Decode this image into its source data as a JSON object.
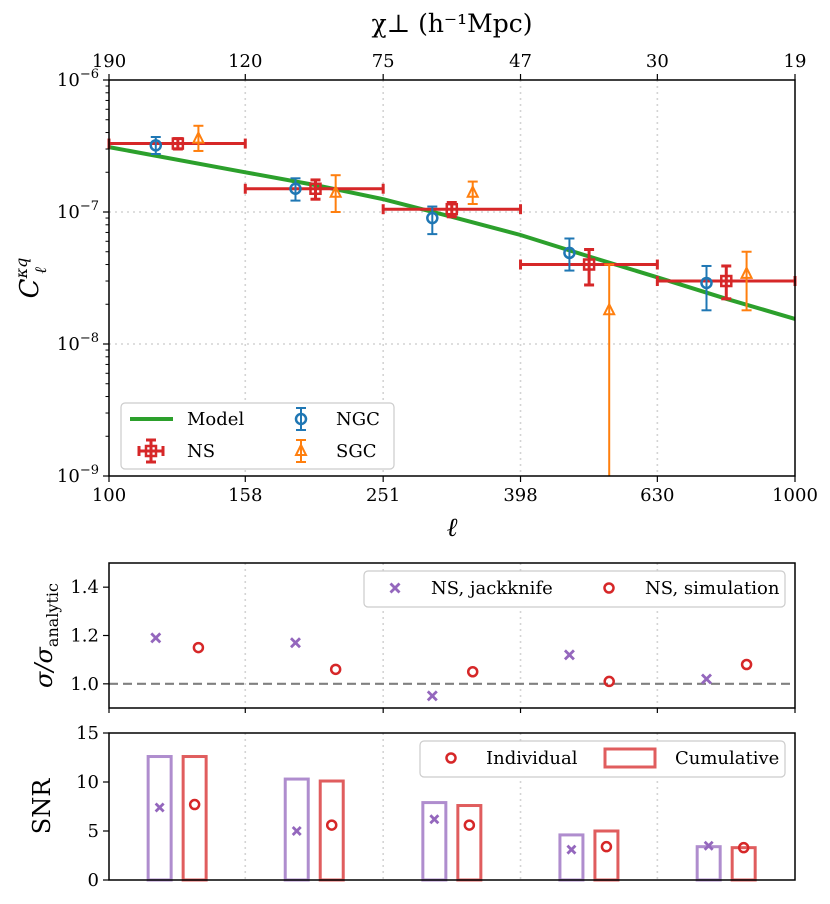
{
  "chart_data": [
    {
      "type": "scatter",
      "panel": "main",
      "title": "",
      "xlabel": "ℓ",
      "ylabel": "C_ℓ^κq",
      "xscale": "log",
      "yscale": "log",
      "xlim": [
        100,
        1000
      ],
      "ylim": [
        1e-09,
        1e-06
      ],
      "xticks": [
        100,
        158,
        251,
        398,
        630,
        1000
      ],
      "xtick_labels": [
        "100",
        "158",
        "251",
        "398",
        "630",
        "1000"
      ],
      "ytick_labels": [
        {
          "base": "10",
          "exp": "−9",
          "value": 1e-09
        },
        {
          "base": "10",
          "exp": "−8",
          "value": 1e-08
        },
        {
          "base": "10",
          "exp": "−7",
          "value": 1e-07
        },
        {
          "base": "10",
          "exp": "−6",
          "value": 1e-06
        }
      ],
      "top_axis": {
        "label": "χ⊥ (h⁻¹Mpc)",
        "tick_labels": [
          "190",
          "120",
          "75",
          "47",
          "30",
          "19"
        ]
      },
      "grid": true,
      "legend_position": "lower-left",
      "legend": [
        {
          "label": "Model",
          "color": "#2ca02c",
          "marker": "line"
        },
        {
          "label": "NGC",
          "color": "#1f77b4",
          "marker": "circle"
        },
        {
          "label": "NS",
          "color": "#d62728",
          "marker": "square"
        },
        {
          "label": "SGC",
          "color": "#ff7f0e",
          "marker": "triangle"
        }
      ],
      "model": {
        "name": "Model",
        "color": "#2ca02c",
        "x": [
          100,
          158,
          200,
          251,
          316,
          398,
          501,
          630,
          794,
          1000
        ],
        "y": [
          3.1e-07,
          2e-07,
          1.6e-07,
          1.25e-07,
          9.2e-08,
          6.7e-08,
          4.6e-08,
          3.2e-08,
          2.2e-08,
          1.55e-08
        ]
      },
      "series": [
        {
          "name": "NS",
          "color": "#d62728",
          "marker": "square",
          "points": [
            {
              "x": 126,
              "y": 3.3e-07,
              "ylo": 3e-07,
              "yhi": 3.6e-07,
              "xlo": 100,
              "xhi": 158
            },
            {
              "x": 200,
              "y": 1.5e-07,
              "ylo": 1.25e-07,
              "yhi": 1.75e-07,
              "xlo": 158,
              "xhi": 251
            },
            {
              "x": 316,
              "y": 1.05e-07,
              "ylo": 9.2e-08,
              "yhi": 1.18e-07,
              "xlo": 251,
              "xhi": 398
            },
            {
              "x": 501,
              "y": 4e-08,
              "ylo": 2.8e-08,
              "yhi": 5.2e-08,
              "xlo": 398,
              "xhi": 630
            },
            {
              "x": 794,
              "y": 3e-08,
              "ylo": 2.2e-08,
              "yhi": 3.9e-08,
              "xlo": 630,
              "xhi": 1000
            }
          ]
        },
        {
          "name": "NGC",
          "color": "#1f77b4",
          "marker": "circle",
          "points": [
            {
              "x": 117,
              "y": 3.2e-07,
              "ylo": 2.75e-07,
              "yhi": 3.7e-07
            },
            {
              "x": 187,
              "y": 1.5e-07,
              "ylo": 1.22e-07,
              "yhi": 1.8e-07
            },
            {
              "x": 296,
              "y": 9e-08,
              "ylo": 6.8e-08,
              "yhi": 1.1e-07
            },
            {
              "x": 469,
              "y": 4.9e-08,
              "ylo": 3.6e-08,
              "yhi": 6.3e-08
            },
            {
              "x": 743,
              "y": 2.9e-08,
              "ylo": 1.8e-08,
              "yhi": 3.9e-08
            }
          ]
        },
        {
          "name": "SGC",
          "color": "#ff7f0e",
          "marker": "triangle",
          "points": [
            {
              "x": 135,
              "y": 3.6e-07,
              "ylo": 2.9e-07,
              "yhi": 4.5e-07
            },
            {
              "x": 214,
              "y": 1.4e-07,
              "ylo": 1e-07,
              "yhi": 1.9e-07
            },
            {
              "x": 339,
              "y": 1.4e-07,
              "ylo": 1.15e-07,
              "yhi": 1.7e-07
            },
            {
              "x": 536,
              "y": 1.8e-08,
              "ylo": 1e-09,
              "yhi": 4e-08
            },
            {
              "x": 850,
              "y": 3.4e-08,
              "ylo": 1.8e-08,
              "yhi": 5e-08
            }
          ]
        }
      ]
    },
    {
      "type": "scatter",
      "panel": "ratio",
      "ylabel": "σ/σ_analytic",
      "ylim": [
        0.9,
        1.5
      ],
      "yticks": [
        1.0,
        1.2,
        1.4
      ],
      "ytick_labels": [
        "1.0",
        "1.2",
        "1.4"
      ],
      "reference_line": 1.0,
      "legend_position": "top-right",
      "series": [
        {
          "name": "NS, jackknife",
          "color": "#9467bd",
          "marker": "x",
          "x": [
            117,
            187,
            296,
            469,
            743
          ],
          "values": [
            1.19,
            1.17,
            0.95,
            1.12,
            1.02
          ]
        },
        {
          "name": "NS, simulation",
          "color": "#d62728",
          "marker": "circle",
          "x": [
            135,
            214,
            339,
            536,
            850
          ],
          "values": [
            1.15,
            1.06,
            1.05,
            1.01,
            1.08
          ]
        }
      ]
    },
    {
      "type": "bar",
      "panel": "snr",
      "ylabel": "SNR",
      "ylim": [
        0,
        15
      ],
      "yticks": [
        0,
        5,
        10,
        15
      ],
      "ytick_labels": [
        "0",
        "5",
        "10",
        "15"
      ],
      "legend_position": "top-right",
      "legend": [
        {
          "label": "Individual",
          "marker": "circle",
          "color": "#d62728"
        },
        {
          "label": "Cumulative",
          "marker": "bar",
          "color": "#d62728"
        }
      ],
      "bins": [
        "100–158",
        "158–251",
        "251–398",
        "398–630",
        "630–1000"
      ],
      "series": [
        {
          "name": "jackknife",
          "color": "#9467bd",
          "cumulative": [
            12.6,
            10.3,
            7.9,
            4.6,
            3.4
          ],
          "individual": [
            7.4,
            5.0,
            6.2,
            3.1,
            3.5
          ]
        },
        {
          "name": "simulation",
          "color": "#d62728",
          "cumulative": [
            12.6,
            10.1,
            7.6,
            5.0,
            3.3
          ],
          "individual": [
            7.7,
            5.6,
            5.6,
            3.4,
            3.3
          ]
        }
      ]
    }
  ]
}
